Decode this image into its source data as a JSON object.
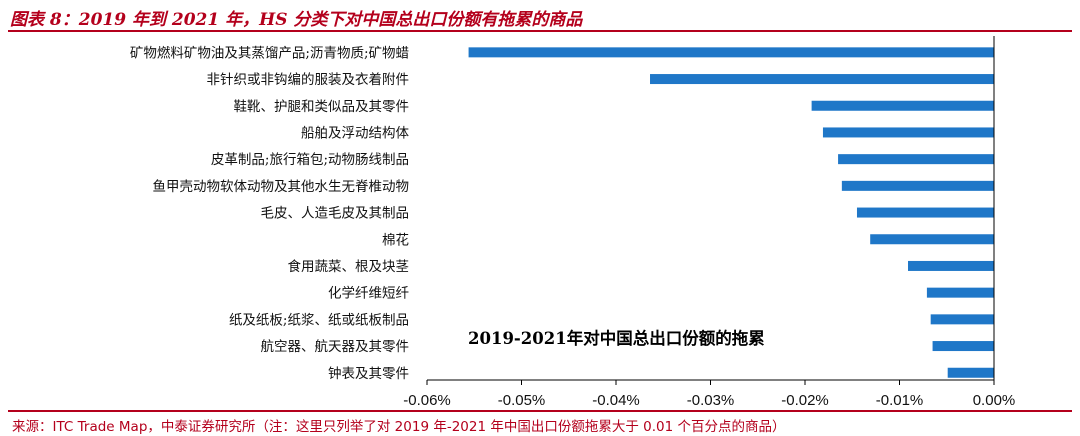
{
  "header": {
    "title": "图表 8：2019 年到 2021 年，HS 分类下对中国总出口份额有拖累的商品"
  },
  "footer": {
    "source": "来源：ITC Trade Map，中泰证券研究所（注：这里只列举了对 2019 年-2021 年中国出口份额拖累大于 0.01 个百分点的商品）"
  },
  "colors": {
    "accent": "#b4001c",
    "bar": "#1f77c8"
  },
  "chart_data": {
    "type": "bar",
    "orientation": "horizontal",
    "categories": [
      "矿物燃料矿物油及其蒸馏产品;沥青物质;矿物蜡",
      "非针织或非钩编的服装及衣着附件",
      "鞋靴、护腿和类似品及其零件",
      "船舶及浮动结构体",
      "皮革制品;旅行箱包;动物肠线制品",
      "鱼甲壳动物软体动物及其他水生无脊椎动物",
      "毛皮、人造毛皮及其制品",
      "棉花",
      "食用蔬菜、根及块茎",
      "化学纤维短纤",
      "纸及纸板;纸浆、纸或纸板制品",
      "航空器、航天器及其零件",
      "钟表及其零件"
    ],
    "values": [
      -0.0556,
      -0.0364,
      -0.0193,
      -0.0181,
      -0.0165,
      -0.0161,
      -0.0145,
      -0.0131,
      -0.0091,
      -0.0071,
      -0.0067,
      -0.0065,
      -0.0049
    ],
    "x_ticks": [
      "-0.06%",
      "-0.05%",
      "-0.04%",
      "-0.03%",
      "-0.02%",
      "-0.01%",
      "0.00%"
    ],
    "xlim": [
      -0.06,
      0.0
    ],
    "annotation": "2019-2021年对中国总出口份额的拖累",
    "grid": false,
    "legend": "none"
  }
}
